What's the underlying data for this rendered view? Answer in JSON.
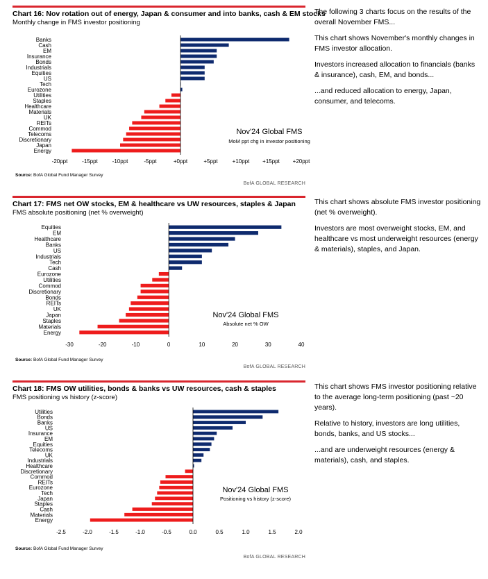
{
  "colors": {
    "positive": "#0e2a6e",
    "negative": "#ee1c1c",
    "accent": "#d9262e"
  },
  "panels": [
    {
      "title": "Chart 16: Nov rotation out of energy, Japan & consumer and into banks, cash & EM stocks",
      "subtitle": "Monthly change in FMS investor positioning",
      "annotation_main": "Nov'24 Global FMS",
      "annotation_sub": "MoM ppt chg in investor positioning",
      "source_label": "Source:",
      "source_text": "BofA Global Fund Manager Survey",
      "research": "BofA GLOBAL RESEARCH",
      "notes": [
        "The following 3 charts focus on the results of the overall November FMS...",
        "This chart shows November's monthly changes in FMS investor allocation.",
        "Investors increased allocation to financials (banks & insurance), cash, EM, and bonds...",
        "...and reduced allocation to energy, Japan, consumer, and telecoms."
      ]
    },
    {
      "title": "Chart 17: FMS net OW stocks, EM & healthcare vs UW resources, staples & Japan",
      "subtitle": "FMS absolute positioning (net % overweight)",
      "annotation_main": "Nov'24 Global FMS",
      "annotation_sub": "Absolute net % OW",
      "source_label": "Source:",
      "source_text": "BofA Global Fund Manager Survey",
      "research": "BofA GLOBAL RESEARCH",
      "notes": [
        "This chart shows absolute FMS investor positioning (net % overweight).",
        "Investors are most overweight stocks, EM, and healthcare vs most underweight resources (energy & materials), staples, and Japan."
      ]
    },
    {
      "title": "Chart 18: FMS OW utilities, bonds & banks vs UW resources, cash & staples",
      "subtitle": "FMS positioning vs history (z-score)",
      "annotation_main": "Nov'24 Global FMS",
      "annotation_sub": "Positioning vs history (z-score)",
      "source_label": "Source:",
      "source_text": "BofA Global Fund Manager Survey",
      "research": "BofA GLOBAL RESEARCH",
      "notes": [
        "This chart shows FMS investor positioning relative to the average long-term positioning (past ~20 years).",
        "Relative to history, investors are long utilities, bonds, banks, and US stocks...",
        "...and are underweight resources (energy & materials), cash, and staples."
      ]
    }
  ],
  "chart_data": [
    {
      "type": "bar",
      "orientation": "horizontal",
      "title": "Chart 16: Nov rotation out of energy, Japan & consumer and into banks, cash & EM stocks",
      "categories": [
        "Banks",
        "Cash",
        "EM",
        "Insurance",
        "Bonds",
        "Industrials",
        "Equities",
        "US",
        "Tech",
        "Eurozone",
        "Utilities",
        "Staples",
        "Healthcare",
        "Materials",
        "UK",
        "REITs",
        "Commod",
        "Telecoms",
        "Discretionary",
        "Japan",
        "Energy"
      ],
      "values": [
        18,
        8,
        6,
        6,
        5.5,
        4,
        4,
        4,
        0,
        0.3,
        -1.5,
        -2.5,
        -3.5,
        -6,
        -6.5,
        -8,
        -8.5,
        -9,
        -9.5,
        -10,
        -18
      ],
      "xlim": [
        -20,
        20
      ],
      "ticks": [
        -20,
        -15,
        -10,
        -5,
        0,
        5,
        10,
        15,
        20
      ],
      "tick_labels": [
        "-20ppt",
        "-15ppt",
        "-10ppt",
        "-5ppt",
        "+0ppt",
        "+5ppt",
        "+10ppt",
        "+15ppt",
        "+20ppt"
      ],
      "grid": false,
      "legend": "none"
    },
    {
      "type": "bar",
      "orientation": "horizontal",
      "title": "Chart 17: FMS net OW stocks, EM & healthcare vs UW resources, staples & Japan",
      "categories": [
        "Equities",
        "EM",
        "Healthcare",
        "Banks",
        "US",
        "Industrials",
        "Tech",
        "Cash",
        "Eurozone",
        "Utilities",
        "Commod",
        "Discretionary",
        "Bonds",
        "REITs",
        "UK",
        "Japan",
        "Staples",
        "Materials",
        "Energy"
      ],
      "values": [
        34,
        27,
        20,
        18,
        13,
        10,
        10,
        4,
        -3,
        -5,
        -8.5,
        -8.5,
        -9.5,
        -11.5,
        -12,
        -13,
        -15,
        -21.5,
        -27
      ],
      "xlim": [
        -30,
        40
      ],
      "ticks": [
        -30,
        -20,
        -10,
        0,
        10,
        20,
        30,
        40
      ],
      "tick_labels": [
        "-30",
        "-20",
        "-10",
        "0",
        "10",
        "20",
        "30",
        "40"
      ],
      "grid": false,
      "legend": "none"
    },
    {
      "type": "bar",
      "orientation": "horizontal",
      "title": "Chart 18: FMS OW utilities, bonds & banks vs UW resources, cash & staples",
      "categories": [
        "Utilities",
        "Bonds",
        "Banks",
        "US",
        "Insurance",
        "EM",
        "Equities",
        "Telecoms",
        "UK",
        "Industrials",
        "Healthcare",
        "Discretionary",
        "Commod",
        "REITs",
        "Eurozone",
        "Tech",
        "Japan",
        "Staples",
        "Cash",
        "Materials",
        "Energy"
      ],
      "values": [
        1.62,
        1.32,
        1.0,
        0.75,
        0.45,
        0.4,
        0.35,
        0.32,
        0.2,
        0.16,
        0.02,
        -0.15,
        -0.52,
        -0.62,
        -0.64,
        -0.68,
        -0.72,
        -0.78,
        -1.15,
        -1.3,
        -1.95
      ],
      "xlim": [
        -2.5,
        2.0
      ],
      "ticks": [
        -2.5,
        -2.0,
        -1.5,
        -1.0,
        -0.5,
        0.0,
        0.5,
        1.0,
        1.5,
        2.0
      ],
      "tick_labels": [
        "-2.5",
        "-2.0",
        "-1.5",
        "-1.0",
        "-0.5",
        "0.0",
        "0.5",
        "1.0",
        "1.5",
        "2.0"
      ],
      "grid": false,
      "legend": "none"
    }
  ]
}
